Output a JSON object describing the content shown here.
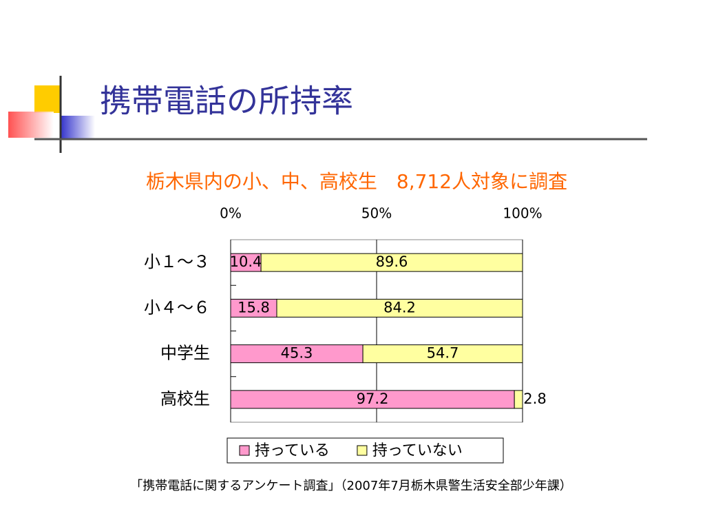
{
  "chart_data": {
    "type": "stacked_bar_horizontal",
    "title": "携帯電話の所持率",
    "subtitle": "栃木県内の小、中、高校生　8,712人対象に調査",
    "source": "「携帯電話に関するアンケート調査」（2007年7月栃木県警生活安全部少年課）",
    "categories": [
      "小１～３",
      "小４～６",
      "中学生",
      "高校生"
    ],
    "series": [
      {
        "name": "持っている",
        "color": "#ff99cc",
        "values": [
          10.4,
          15.8,
          45.3,
          97.2
        ]
      },
      {
        "name": "持っていない",
        "color": "#ffffa0",
        "values": [
          89.6,
          84.2,
          54.7,
          2.8
        ]
      }
    ],
    "xlim": [
      0,
      100
    ],
    "xticks": [
      {
        "value": 0,
        "label": "0%"
      },
      {
        "value": 50,
        "label": "50%"
      },
      {
        "value": 100,
        "label": "100%"
      }
    ],
    "grid": true
  }
}
